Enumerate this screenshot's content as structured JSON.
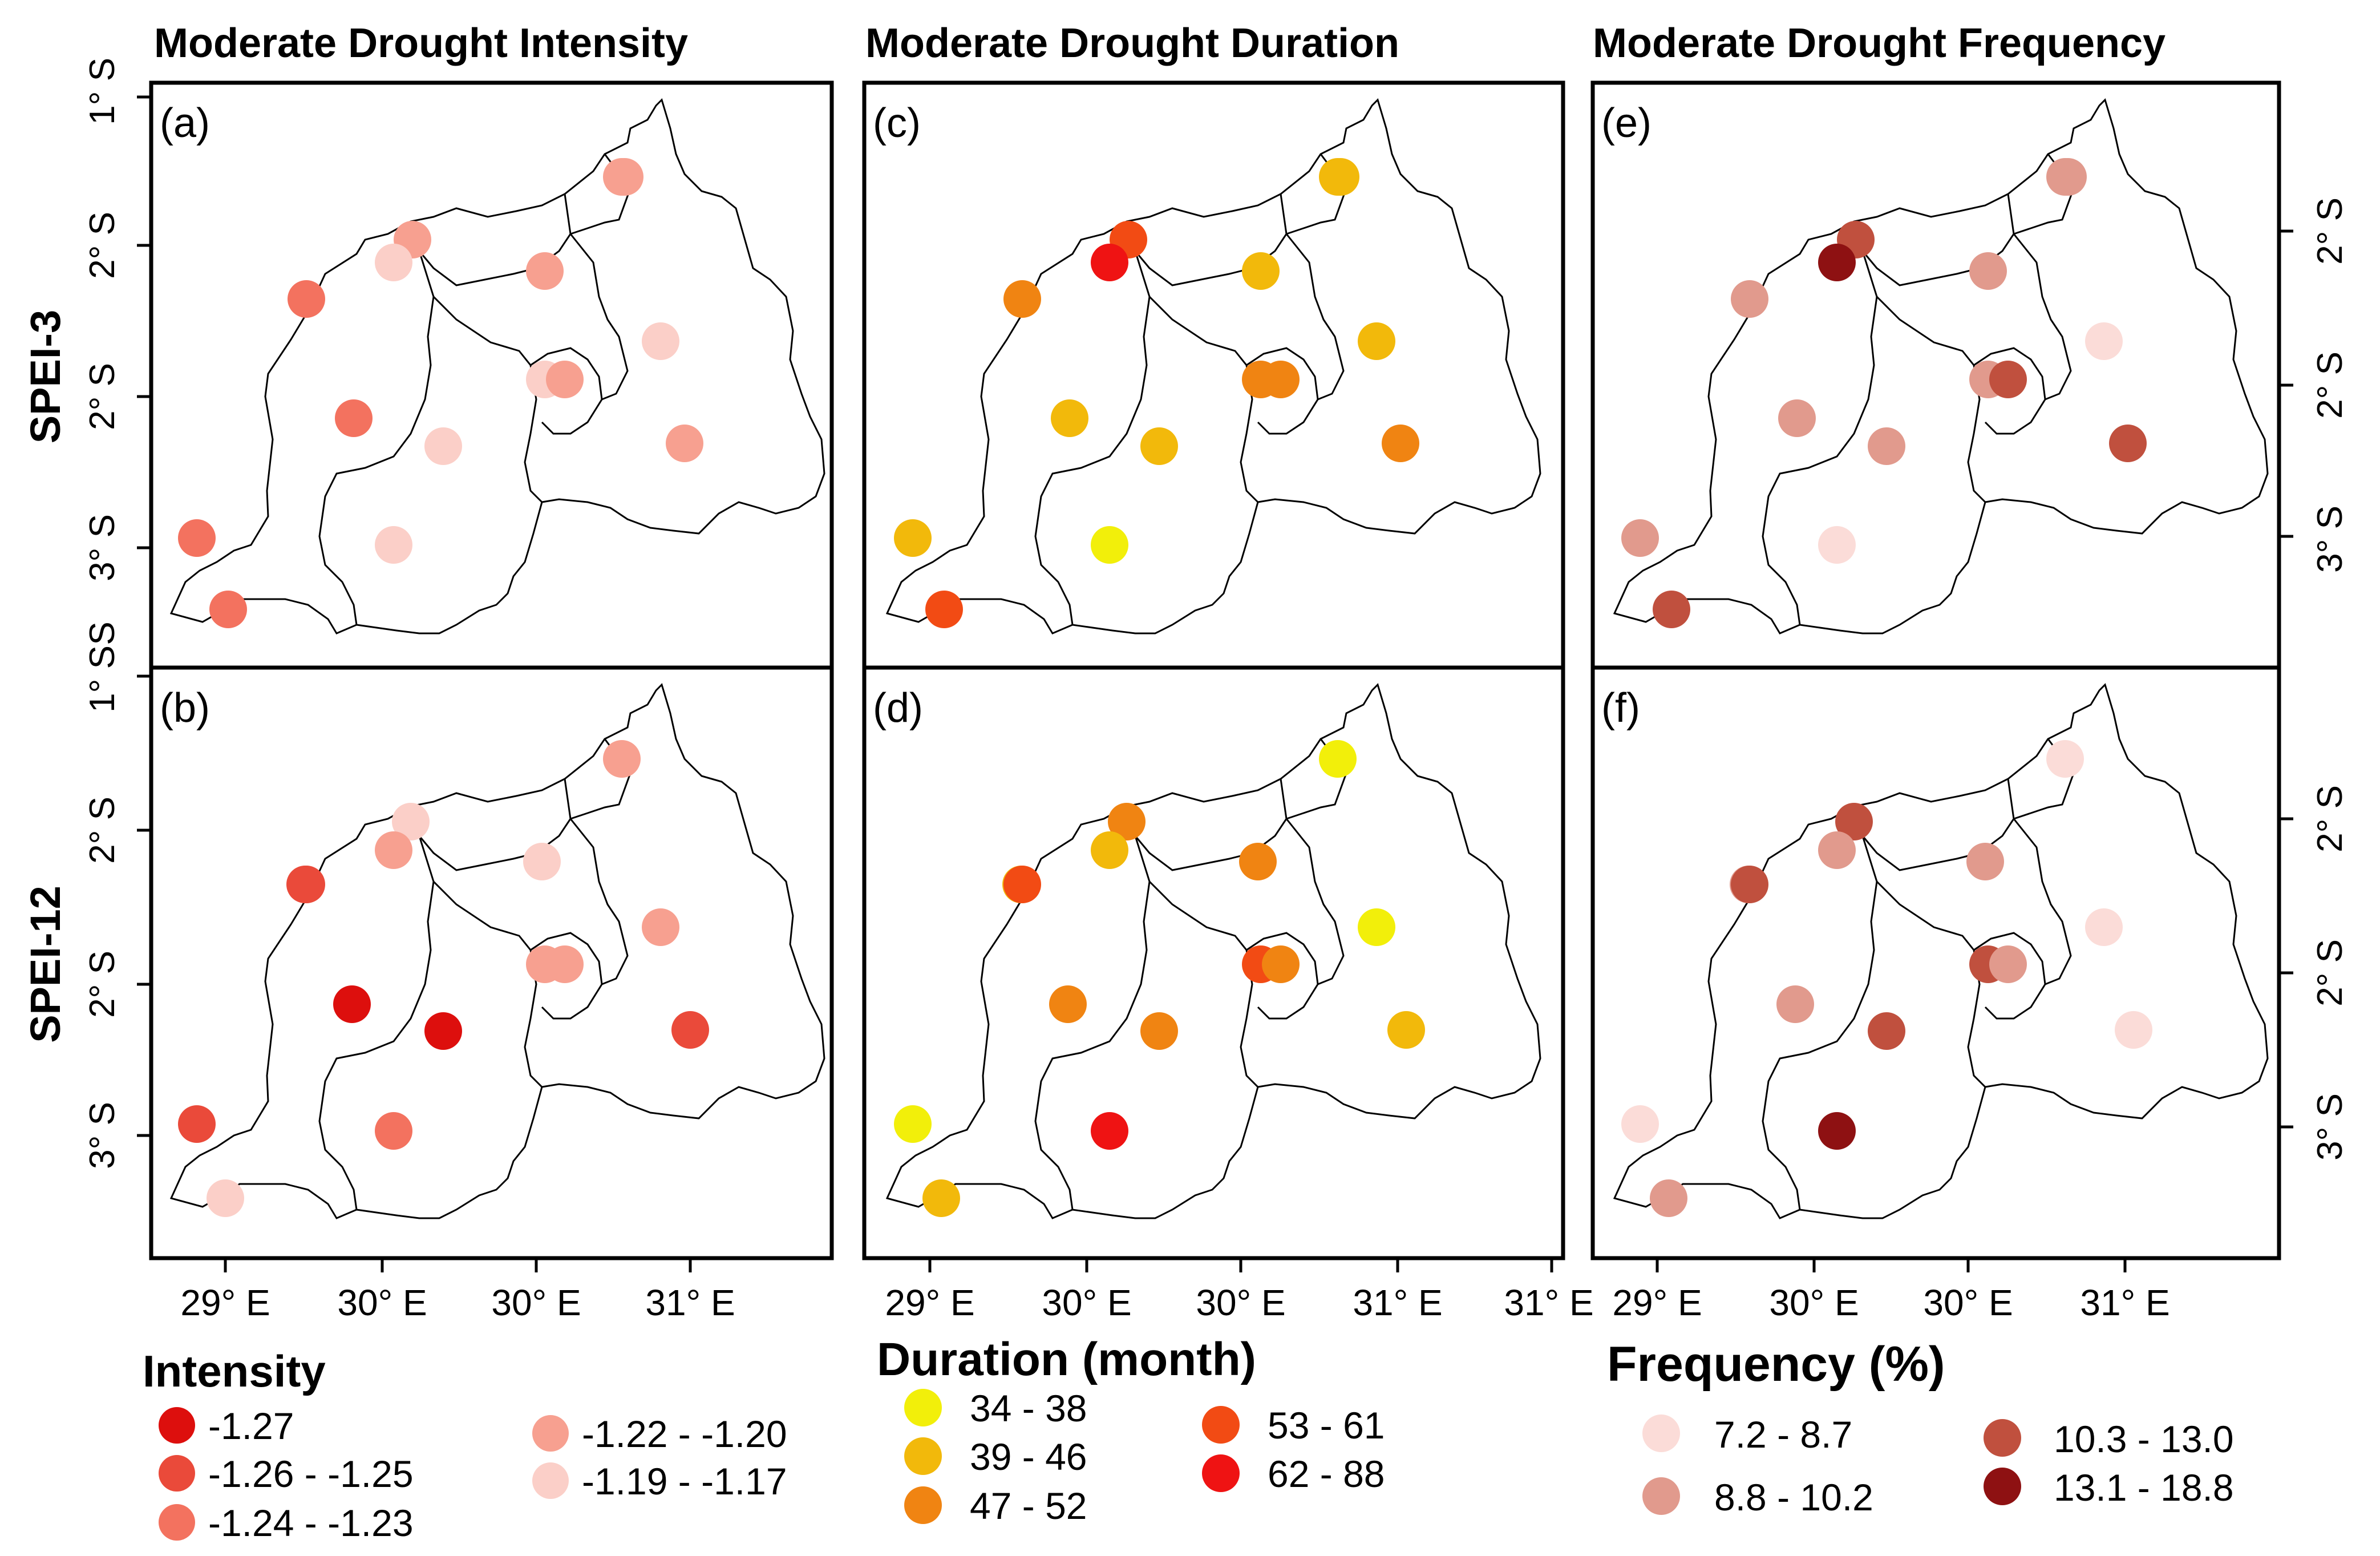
{
  "figure": {
    "col_titles": [
      "Moderate Drought Intensity",
      "Moderate Drought Duration",
      "Moderate Drought Frequency"
    ],
    "row_titles": [
      "SPEI-3",
      "SPEI-12"
    ],
    "panel_labels": [
      "(a)",
      "(b)",
      "(c)",
      "(d)",
      "(e)",
      "(f)"
    ],
    "lat_labels_top": [
      "1° S",
      "2° S",
      "2° S",
      "3° S",
      "S"
    ],
    "lat_labels_bottom": [
      "1° S",
      "2° S",
      "2° S",
      "3° S"
    ],
    "lat_labels_right_top": [
      "2° S",
      "2° S",
      "3° S"
    ],
    "lat_labels_right_bottom": [
      "2° S",
      "2° S",
      "3° S"
    ],
    "lon_labels_a": [
      "29° E",
      "30° E",
      "30° E",
      "31° E"
    ],
    "lon_labels_b": [
      "29° E",
      "30° E",
      "30° E",
      "31° E",
      "31° E"
    ],
    "lon_labels_c": [
      "29° E",
      "30° E",
      "30° E",
      "31° E"
    ]
  },
  "legends": {
    "intensity": {
      "title": "Intensity",
      "items": [
        {
          "label": "-1.27",
          "color": "#dd0f0d"
        },
        {
          "label": "-1.26 - -1.25",
          "color": "#ea4a3a"
        },
        {
          "label": "-1.24 - -1.23",
          "color": "#f3725f"
        },
        {
          "label": "-1.22 - -1.20",
          "color": "#f7a090"
        },
        {
          "label": "-1.19 - -1.17",
          "color": "#fbcfc8"
        }
      ]
    },
    "duration": {
      "title": "Duration (month)",
      "items": [
        {
          "label": "34 - 38",
          "color": "#f2ef0a"
        },
        {
          "label": "39 - 46",
          "color": "#f2b90b"
        },
        {
          "label": "47 - 52",
          "color": "#f08412"
        },
        {
          "label": "53 - 61",
          "color": "#f24b14"
        },
        {
          "label": "62 - 88",
          "color": "#ef1313"
        }
      ]
    },
    "frequency": {
      "title": "Frequency (%)",
      "items": [
        {
          "label": "7.2 - 8.7",
          "color": "#fbdcd8"
        },
        {
          "label": "8.8 - 10.2",
          "color": "#e19a8d"
        },
        {
          "label": "10.3 - 13.0",
          "color": "#c0503e"
        },
        {
          "label": "13.1 - 18.8",
          "color": "#8e1112"
        }
      ]
    }
  },
  "stations": {
    "spei3": {
      "intensity": [
        "-1.22 - -1.20",
        "-1.22 - -1.20",
        "-1.19 - -1.17",
        "-1.24 - -1.23",
        "-1.24 - -1.23",
        "-1.22 - -1.20",
        "-1.19 - -1.17",
        "-1.19 - -1.17",
        "-1.22 - -1.20",
        "-1.22 - -1.20",
        "-1.19 - -1.17",
        "-1.19 - -1.17",
        "-1.24 - -1.23",
        "-1.24 - -1.23",
        "-1.22 - -1.20"
      ],
      "duration": [
        "39 - 46",
        "53 - 61",
        "62 - 88",
        "47 - 52",
        "39 - 46",
        "39 - 46",
        "39 - 46",
        "47 - 52",
        "47 - 52",
        "47 - 52",
        "39 - 46",
        "34 - 38",
        "39 - 46",
        "53 - 61",
        "39 - 46"
      ],
      "frequency": [
        "8.8 - 10.2",
        "10.3 - 13.0",
        "13.1 - 18.8",
        "8.8 - 10.2",
        "8.8 - 10.2",
        "8.8 - 10.2",
        "7.2 - 8.7",
        "8.8 - 10.2",
        "10.3 - 13.0",
        "10.3 - 13.0",
        "8.8 - 10.2",
        "7.2 - 8.7",
        "8.8 - 10.2",
        "10.3 - 13.0",
        "8.8 - 10.2"
      ]
    },
    "spei12": {
      "intensity": [
        "-1.22 - -1.20",
        "-1.19 - -1.17",
        "-1.22 - -1.20",
        "-1.26 - -1.25",
        "-1.19 - -1.17",
        "-1.22 - -1.20",
        "-1.22 - -1.20",
        "-1.22 - -1.20",
        "-1.27",
        "-1.27",
        "-1.26 - -1.25",
        "-1.26 - -1.25",
        "-1.19 - -1.17",
        "-1.24 - -1.23",
        "-1.26 - -1.25"
      ],
      "duration": [
        "34 - 38",
        "47 - 52",
        "39 - 46",
        "39 - 46",
        "47 - 52",
        "53 - 61",
        "47 - 52",
        "34 - 38",
        "47 - 52",
        "47 - 52",
        "39 - 46",
        "34 - 38",
        "39 - 46",
        "62 - 88",
        "53 - 61"
      ],
      "frequency": [
        "7.2 - 8.7",
        "10.3 - 13.0",
        "8.8 - 10.2",
        "8.8 - 10.2",
        "8.8 - 10.2",
        "10.3 - 13.0",
        "8.8 - 10.2",
        "7.2 - 8.7",
        "8.8 - 10.2",
        "10.3 - 13.0",
        "7.2 - 8.7",
        "7.2 - 8.7",
        "8.8 - 10.2",
        "13.1 - 18.8",
        "10.3 - 13.0"
      ]
    }
  }
}
